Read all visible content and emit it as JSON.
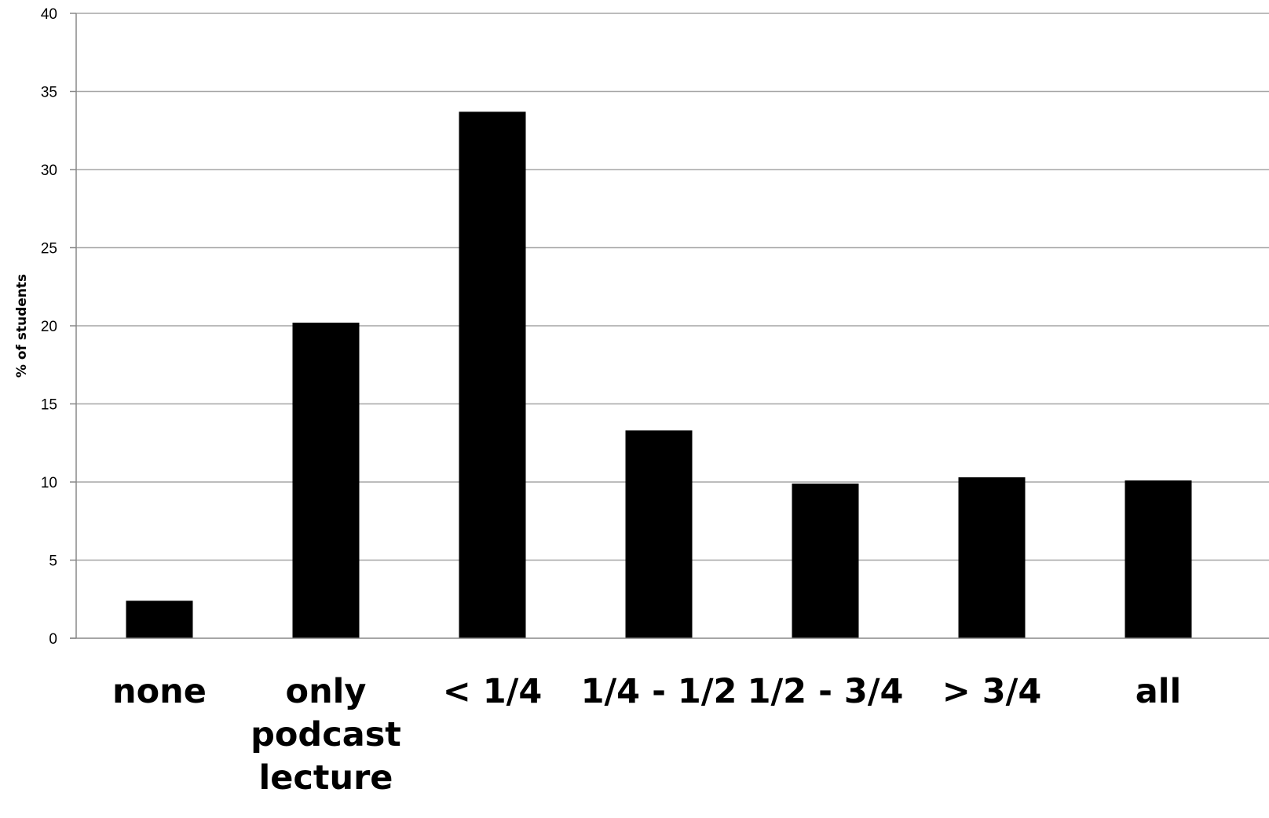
{
  "chart_data": {
    "type": "bar",
    "categories": [
      "none",
      "only podcast lecture",
      "< 1/4",
      "1/4 - 1/2",
      "1/2 - 3/4",
      "> 3/4",
      "all"
    ],
    "category_lines": [
      [
        "none"
      ],
      [
        "only",
        "podcast",
        "lecture"
      ],
      [
        "< 1/4"
      ],
      [
        "1/4 - 1/2"
      ],
      [
        "1/2 - 3/4"
      ],
      [
        "> 3/4"
      ],
      [
        "all"
      ]
    ],
    "values": [
      2.4,
      20.2,
      33.7,
      13.3,
      9.9,
      10.3,
      10.1
    ],
    "title": "",
    "xlabel": "",
    "ylabel": "% of students",
    "ylim": [
      0,
      40
    ],
    "yticks": [
      0,
      5,
      10,
      15,
      20,
      25,
      30,
      35,
      40
    ],
    "grid": true,
    "bar_color": "#000000",
    "grid_color": "#a6a6a6"
  }
}
